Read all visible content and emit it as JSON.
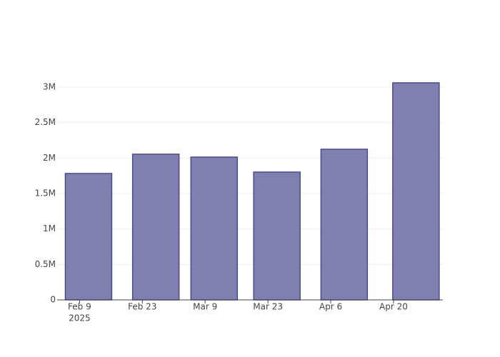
{
  "chart_data": {
    "type": "bar",
    "x": [
      "2025-02-11",
      "2025-02-26",
      "2025-03-11",
      "2025-03-25",
      "2025-04-09",
      "2025-04-25"
    ],
    "values": [
      1782000,
      2054000,
      2013000,
      1802000,
      2124000,
      3060000
    ],
    "color": "#8080b0",
    "edge_color": "#4b4b8c",
    "xlim": [
      "2025-02-04",
      "2025-05-01"
    ],
    "xticks": [
      {
        "value": "2025-02-09",
        "label": "Feb 9",
        "label2": "2025"
      },
      {
        "value": "2025-02-23",
        "label": "Feb 23"
      },
      {
        "value": "2025-03-09",
        "label": "Mar 9"
      },
      {
        "value": "2025-03-23",
        "label": "Mar 23"
      },
      {
        "value": "2025-04-06",
        "label": "Apr 6"
      },
      {
        "value": "2025-04-20",
        "label": "Apr 20"
      }
    ],
    "ylim": [
      0,
      3221000
    ],
    "yticks": [
      0,
      {
        "value": 500000,
        "label": "0.5M"
      },
      {
        "value": 1000000,
        "label": "1M"
      },
      {
        "value": 1500000,
        "label": "1.5M"
      },
      {
        "value": 2000000,
        "label": "2M"
      },
      {
        "value": 2500000,
        "label": "2.5M"
      },
      {
        "value": 3000000,
        "label": "3M"
      }
    ],
    "grid": true
  }
}
